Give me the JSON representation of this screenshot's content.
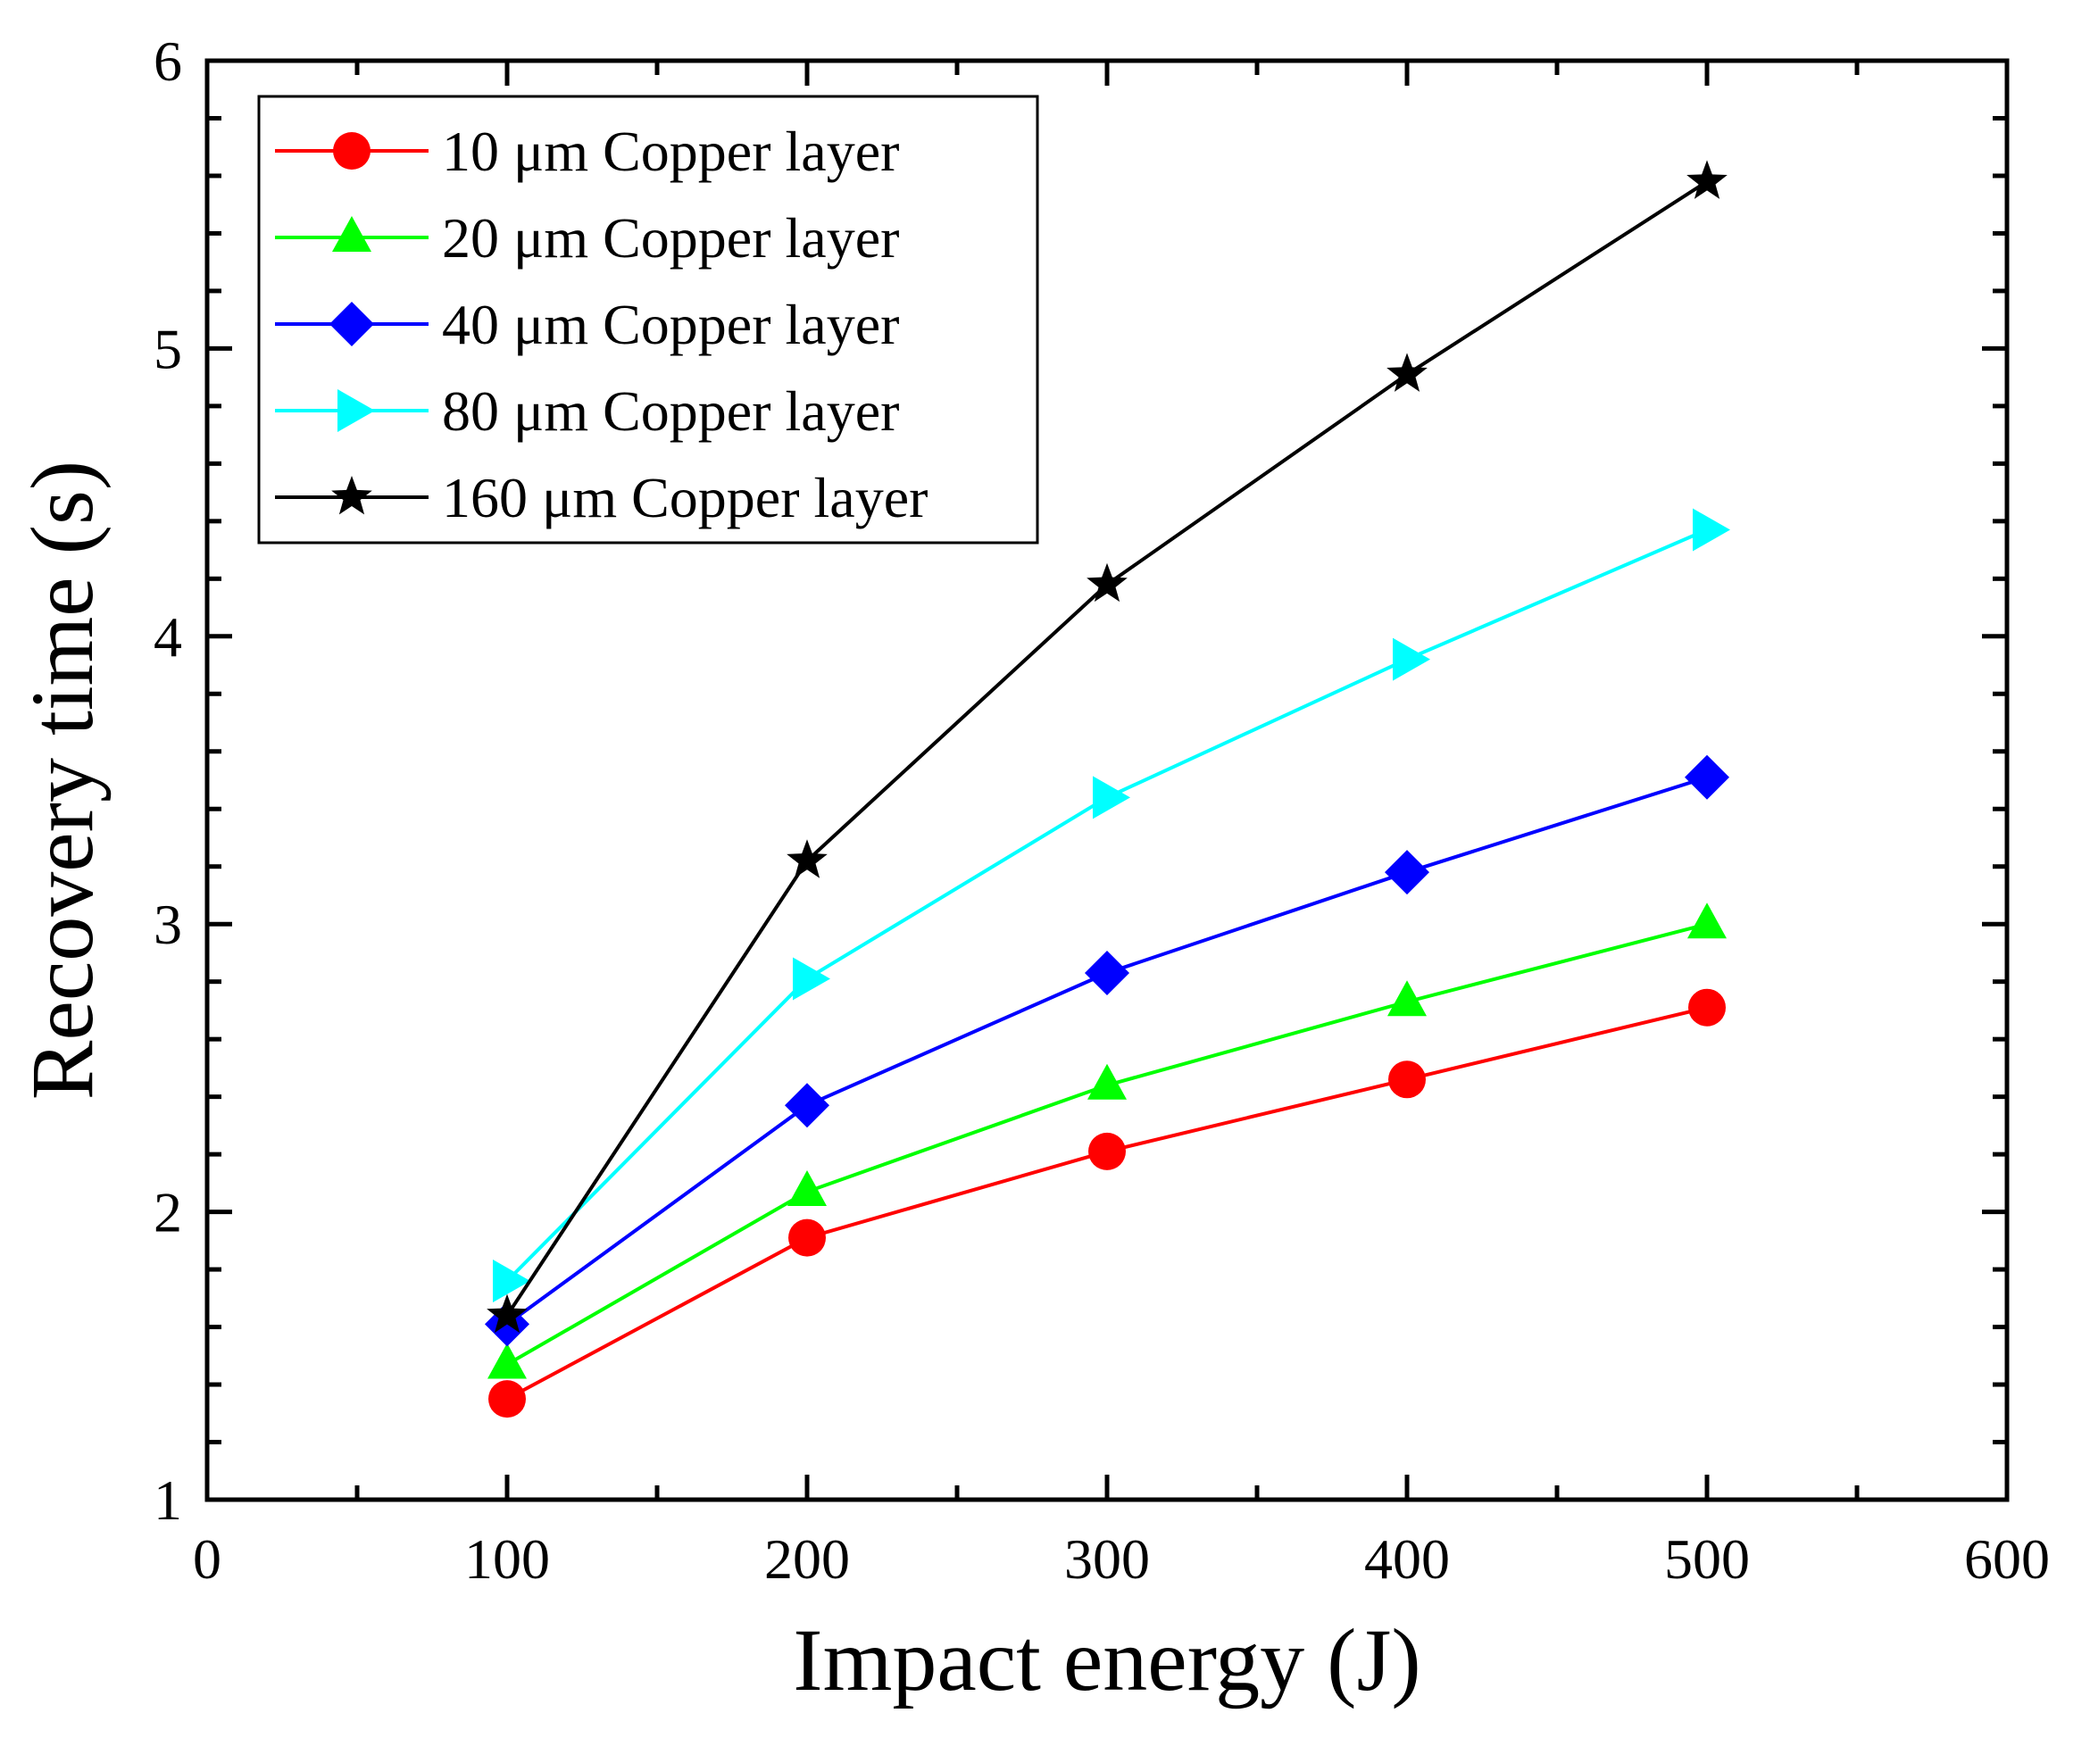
{
  "chart_data": {
    "type": "line",
    "title": "",
    "xlabel": "Impact energy (J)",
    "ylabel": "Recovery time (s)",
    "xlim": [
      0,
      600
    ],
    "ylim": [
      1,
      6
    ],
    "xticks": [
      0,
      100,
      200,
      300,
      400,
      500,
      600
    ],
    "yticks": [
      1,
      2,
      3,
      4,
      5,
      6
    ],
    "xtick_labels": [
      "0",
      "100",
      "200",
      "300",
      "400",
      "500",
      "600"
    ],
    "ytick_labels": [
      "1",
      "2",
      "3",
      "4",
      "5",
      "6"
    ],
    "grid": false,
    "legend_position": "top-left",
    "x": [
      100,
      200,
      300,
      400,
      500
    ],
    "series": [
      {
        "name": "10 μm Copper layer",
        "color": "#ff0000",
        "marker": "circle",
        "values": [
          1.35,
          1.91,
          2.21,
          2.46,
          2.71
        ]
      },
      {
        "name": "20 μm Copper layer",
        "color": "#00ff00",
        "marker": "triangle-up",
        "values": [
          1.47,
          2.07,
          2.44,
          2.73,
          3.0
        ]
      },
      {
        "name": "40 μm Copper layer",
        "color": "#0000ff",
        "marker": "diamond",
        "values": [
          1.61,
          2.37,
          2.83,
          3.18,
          3.51
        ]
      },
      {
        "name": "80 μm Copper layer",
        "color": "#00ffff",
        "marker": "triangle-right",
        "values": [
          1.76,
          2.81,
          3.44,
          3.92,
          4.37
        ]
      },
      {
        "name": "160 μm Copper layer",
        "color": "#000000",
        "marker": "star",
        "values": [
          1.64,
          3.22,
          4.18,
          4.91,
          5.58
        ]
      }
    ]
  }
}
